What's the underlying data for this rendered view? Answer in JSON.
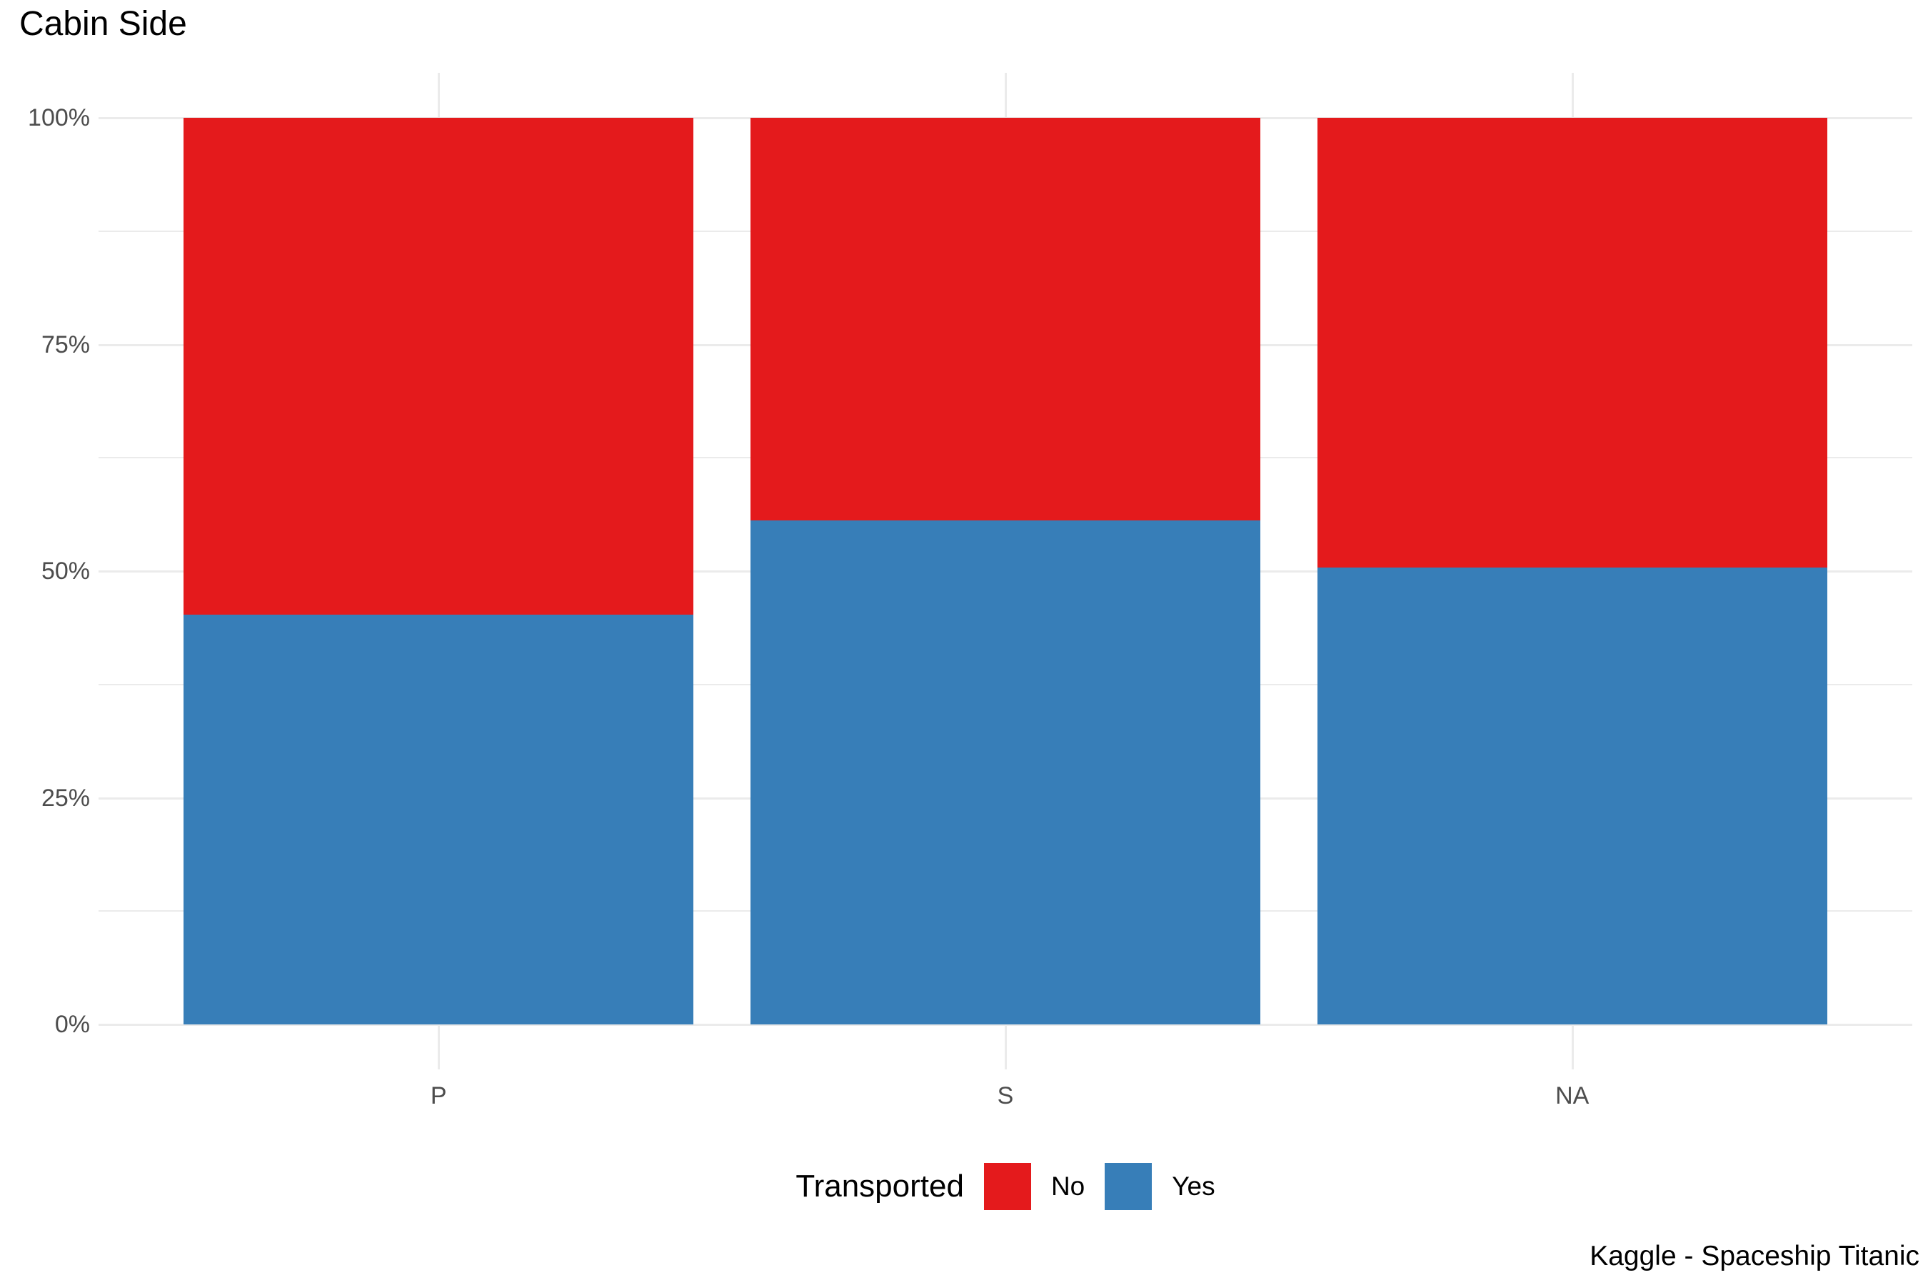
{
  "title": "Cabin Side",
  "caption": "Kaggle - Spaceship Titanic",
  "legend": {
    "title": "Transported",
    "items": [
      {
        "label": "No",
        "color": "#E41A1C"
      },
      {
        "label": "Yes",
        "color": "#377EB8"
      }
    ]
  },
  "chart_data": {
    "type": "bar",
    "stacked": true,
    "normalized_percent": true,
    "title": "Cabin Side",
    "xlabel": "",
    "ylabel": "",
    "categories": [
      "P",
      "S",
      "NA"
    ],
    "series": [
      {
        "name": "Yes",
        "color": "#377EB8",
        "values": [
          45.2,
          55.6,
          50.4
        ]
      },
      {
        "name": "No",
        "color": "#E41A1C",
        "values": [
          54.8,
          44.4,
          49.6
        ]
      }
    ],
    "ylim": [
      0,
      100
    ],
    "y_tick_values": [
      0,
      25,
      50,
      75,
      100
    ],
    "y_tick_labels": [
      "0%",
      "25%",
      "50%",
      "75%",
      "100%"
    ],
    "y_minor_tick_values": [
      12.5,
      37.5,
      62.5,
      87.5
    ],
    "grid": {
      "show": true,
      "major_color": "#EBEBEB",
      "minor_color": "#EBEBEB"
    },
    "axis_text_color": "#4D4D4D",
    "background_color": "#FFFFFF",
    "legend_position": "bottom"
  }
}
